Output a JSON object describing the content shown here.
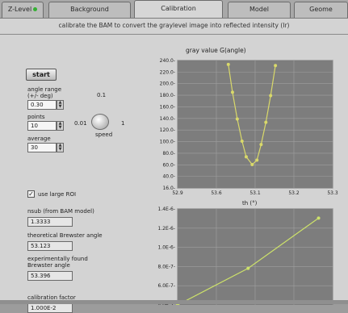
{
  "tabs": [
    {
      "label": "Z-Level"
    },
    {
      "label": "Background"
    },
    {
      "label": "Calibration"
    },
    {
      "label": "Model"
    },
    {
      "label": "Geome"
    }
  ],
  "subtitle": "calibrate the BAM to convert the graylevel image into reflected intensity (Ir)",
  "controls": {
    "start_label": "start",
    "angle_range_label": "angle range\n(+/- deg)",
    "angle_range_value": "0.30",
    "points_label": "points",
    "points_value": "10",
    "average_label": "average",
    "average_value": "30",
    "speed_label": "speed",
    "speed_ticks": [
      "0.1",
      "0.01",
      "1"
    ],
    "use_large_roi_label": "use large ROI",
    "use_large_roi_checked": "✓"
  },
  "indicators": {
    "nsub_label": "nsub (from BAM model)",
    "nsub_value": "1.3333",
    "theo_brewster_label": "theoretical Brewster angle",
    "theo_brewster_value": "53.123",
    "exp_brewster_label": "experimentally found\nBrewster angle",
    "exp_brewster_value": "53.396",
    "cal_factor_label": "calibration factor",
    "cal_factor_value": "1.000E-2"
  },
  "chart_data": [
    {
      "type": "line",
      "title": "gray value G(angle)",
      "xlabel": "th (°)",
      "ylabel": "",
      "x_ticks": [
        "52.9",
        "53.6",
        "53.1",
        "53.2",
        "53.3"
      ],
      "y_ticks": [
        "240.0-",
        "220.0-",
        "200.0-",
        "180.0-",
        "160.0-",
        "140.0-",
        "120.0-",
        "100.0-",
        "80.0-",
        "60.0-",
        "40.0-",
        "16.0-"
      ],
      "color": "#d9d96a",
      "x": [
        53.085,
        53.092,
        53.1,
        53.108,
        53.115,
        53.125,
        53.133,
        53.14,
        53.148,
        53.156,
        53.164
      ],
      "values": [
        238,
        188,
        140,
        100,
        72,
        58,
        66,
        94,
        134,
        182,
        236
      ],
      "xlim": [
        53.0,
        53.26
      ],
      "ylim": [
        16,
        245
      ]
    },
    {
      "type": "line",
      "title": "",
      "xlabel": "",
      "ylabel": "",
      "y_ticks": [
        "1.4E-6-",
        "1.2E-6-",
        "1.0E-6-",
        "8.0E-7-",
        "6.0E-7-",
        "4.0E-7-"
      ],
      "color": "#cde26a",
      "x": [
        0,
        1,
        2
      ],
      "values": [
        4e-07,
        8e-07,
        1.35e-06
      ],
      "xlim": [
        0,
        2.2
      ],
      "ylim": [
        4e-07,
        1.45e-06
      ]
    }
  ]
}
